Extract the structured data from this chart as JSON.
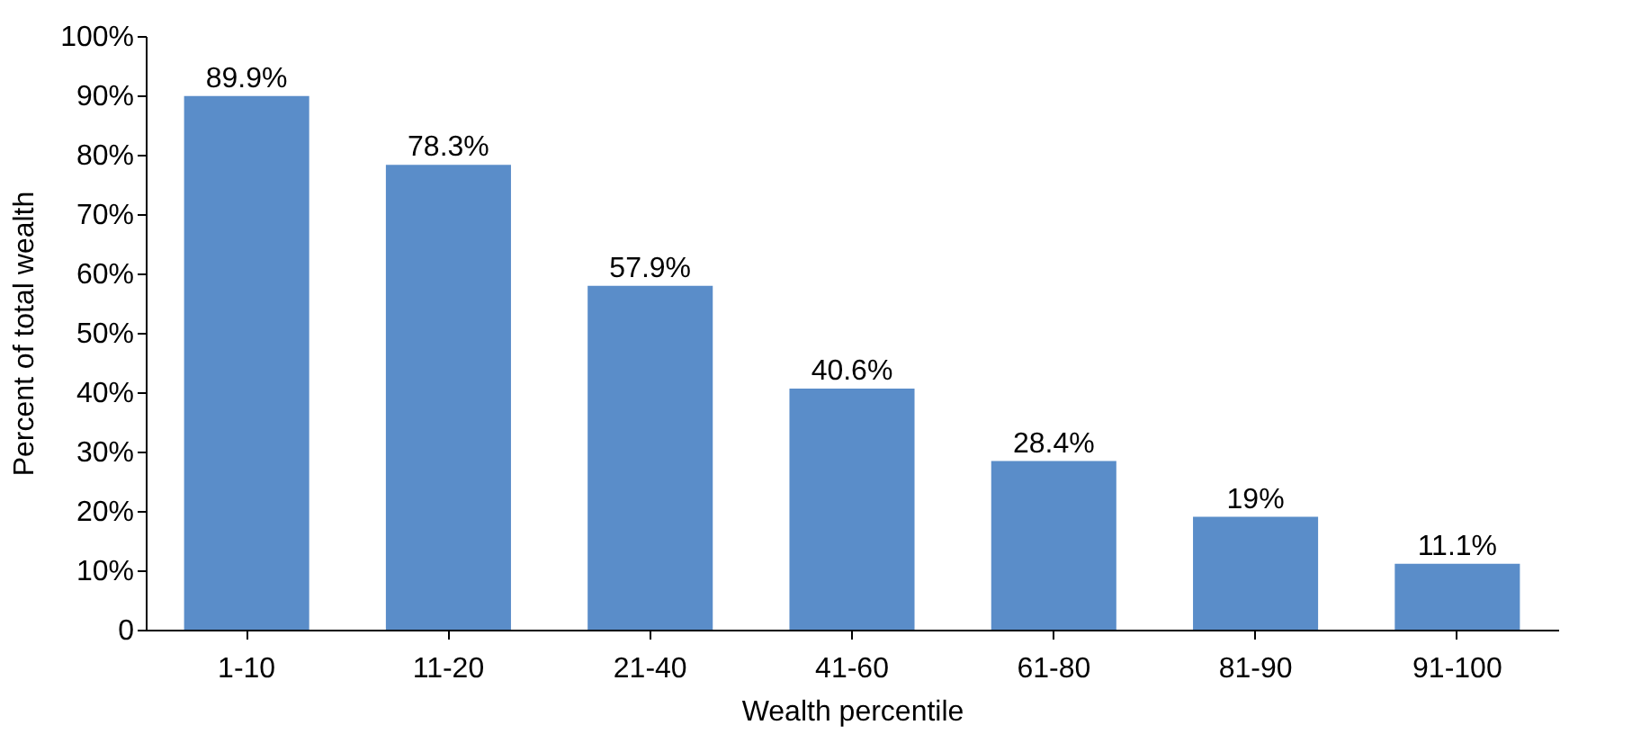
{
  "chart_data": {
    "type": "bar",
    "xlabel": "Wealth percentile",
    "ylabel": "Percent of total wealth",
    "categories": [
      "1-10",
      "11-20",
      "21-40",
      "41-60",
      "61-80",
      "81-90",
      "91-100"
    ],
    "values": [
      89.9,
      78.3,
      57.9,
      40.6,
      28.4,
      19,
      11.1
    ],
    "value_labels": [
      "89.9%",
      "78.3%",
      "57.9%",
      "40.6%",
      "28.4%",
      "19%",
      "11.1%"
    ],
    "color": "#5a8dc9",
    "ylim": [
      0,
      100
    ],
    "yticks": [
      0,
      {
        "value": 10,
        "label": "10%"
      },
      {
        "value": 20,
        "label": "20%"
      },
      {
        "value": 30,
        "label": "30%"
      },
      {
        "value": 40,
        "label": "40%"
      },
      {
        "value": 50,
        "label": "50%"
      },
      {
        "value": 60,
        "label": "60%"
      },
      {
        "value": 70,
        "label": "70%"
      },
      {
        "value": 80,
        "label": "80%"
      },
      {
        "value": 90,
        "label": "90%"
      },
      {
        "value": 100,
        "label": "100%"
      }
    ],
    "grid": false
  }
}
